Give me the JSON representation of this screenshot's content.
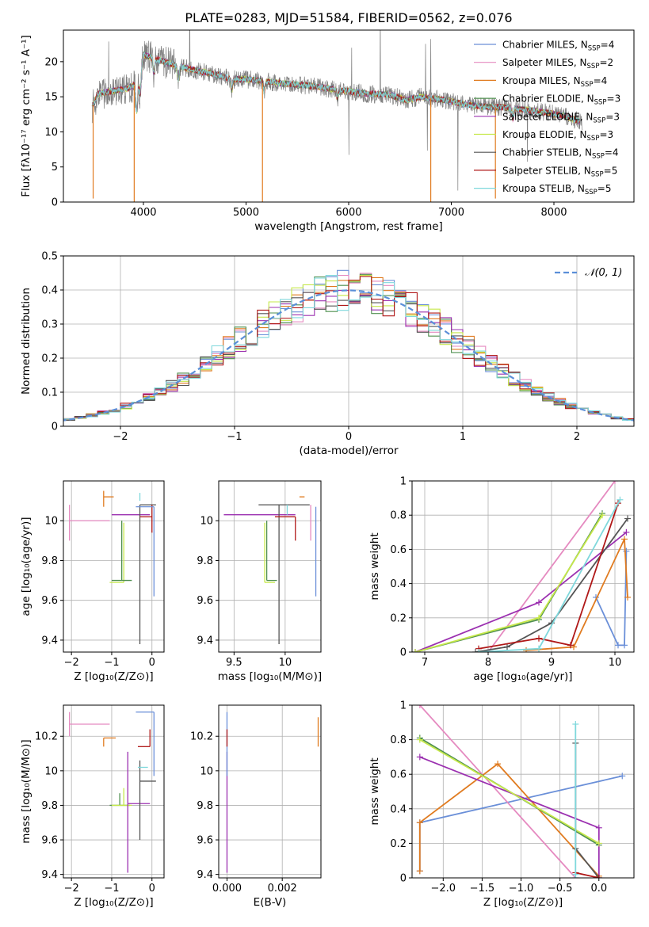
{
  "figure": {
    "title": "PLATE=0283, MJD=51584, FIBERID=0562, z=0.076"
  },
  "colors": {
    "chabrier_miles": "#6a8fd8",
    "salpeter_miles": "#e58ac0",
    "kroupa_miles": "#e07b20",
    "chabrier_elodie": "#4f8f4f",
    "salpeter_elodie": "#9b30b0",
    "kroupa_elodie": "#c6e84a",
    "chabrier_stelib": "#555555",
    "salpeter_stelib": "#b01818",
    "kroupa_stelib": "#7fd8dc",
    "normal_curve": "#5b8fd8",
    "grid": "#b0b0b0"
  },
  "chart_data": [
    {
      "id": "spectrum",
      "type": "line",
      "xlabel": "wavelength [Angstrom, rest frame]",
      "ylabel": "Flux [fλ10⁻¹⁷ erg cm⁻² s⁻¹ A⁻¹]",
      "xlim": [
        3220,
        8780
      ],
      "ylim": [
        0,
        24.5
      ],
      "xticks": [
        4000,
        5000,
        6000,
        7000,
        8000
      ],
      "yticks": [
        0,
        5,
        10,
        15,
        20
      ],
      "grid": false,
      "legend_position": "top-right",
      "data_anchors": {
        "x": [
          3500,
          3560,
          3700,
          3850,
          3950,
          4000,
          4100,
          4300,
          4500,
          4700,
          4860,
          5000,
          5200,
          5400,
          5600,
          5800,
          6000,
          6200,
          6400,
          6563,
          6700,
          6900,
          7100,
          7300,
          7500,
          7700,
          7900,
          8100,
          8250
        ],
        "y": [
          13.5,
          15.5,
          15.8,
          16.2,
          17.0,
          21.0,
          20.5,
          19.5,
          18.8,
          18.2,
          17.5,
          17.5,
          17.2,
          16.8,
          16.6,
          16.2,
          15.8,
          15.4,
          15.3,
          14.5,
          15.0,
          14.6,
          14.0,
          13.6,
          13.5,
          13.2,
          12.8,
          12.3,
          11.5
        ]
      },
      "series": [
        {
          "name": "Chabrier MILES, N_SSP=4",
          "legend_label": "Chabrier MILES, N",
          "legend_sub": "SSP",
          "legend_suffix": "=4",
          "color_key": "chabrier_miles"
        },
        {
          "name": "Salpeter MILES, N_SSP=2",
          "legend_label": "Salpeter MILES, N",
          "legend_sub": "SSP",
          "legend_suffix": "=2",
          "color_key": "salpeter_miles"
        },
        {
          "name": "Kroupa MILES, N_SSP=4",
          "legend_label": "Kroupa MILES, N",
          "legend_sub": "SSP",
          "legend_suffix": "=4",
          "color_key": "kroupa_miles"
        },
        {
          "name": "Chabrier ELODIE, N_SSP=3",
          "legend_label": "Chabrier ELODIE, N",
          "legend_sub": "SSP",
          "legend_suffix": "=3",
          "color_key": "chabrier_elodie"
        },
        {
          "name": "Salpeter ELODIE, N_SSP=3",
          "legend_label": "Salpeter ELODIE, N",
          "legend_sub": "SSP",
          "legend_suffix": "=3",
          "color_key": "salpeter_elodie"
        },
        {
          "name": "Kroupa ELODIE, N_SSP=3",
          "legend_label": "Kroupa ELODIE, N",
          "legend_sub": "SSP",
          "legend_suffix": "=3",
          "color_key": "kroupa_elodie"
        },
        {
          "name": "Chabrier STELIB, N_SSP=4",
          "legend_label": "Chabrier STELIB, N",
          "legend_sub": "SSP",
          "legend_suffix": "=4",
          "color_key": "chabrier_stelib"
        },
        {
          "name": "Salpeter STELIB, N_SSP=5",
          "legend_label": "Salpeter STELIB, N",
          "legend_sub": "SSP",
          "legend_suffix": "=5",
          "color_key": "salpeter_stelib"
        },
        {
          "name": "Kroupa STELIB, N_SSP=5",
          "legend_label": "Kroupa STELIB, N",
          "legend_sub": "SSP",
          "legend_suffix": "=5",
          "color_key": "kroupa_stelib"
        }
      ],
      "dips": [
        {
          "x": 3510,
          "y": 0.5,
          "color_key": "kroupa_miles"
        },
        {
          "x": 3910,
          "y": 0.0,
          "color_key": "kroupa_miles"
        },
        {
          "x": 5160,
          "y": 0.0,
          "color_key": "kroupa_miles"
        },
        {
          "x": 6800,
          "y": 0.0,
          "color_key": "kroupa_miles"
        },
        {
          "x": 7430,
          "y": 0.5,
          "color_key": "kroupa_miles"
        }
      ]
    },
    {
      "id": "residuals",
      "type": "step",
      "xlabel": "(data-model)/error",
      "ylabel": "Normed distribution",
      "xlim": [
        -2.5,
        2.5
      ],
      "ylim": [
        0,
        0.5
      ],
      "xticks": [
        -2,
        -1,
        0,
        1,
        2
      ],
      "yticks": [
        0.0,
        0.1,
        0.2,
        0.3,
        0.4,
        0.5
      ],
      "grid": true,
      "legend_position": "top-right",
      "legend": "𝒩(0, 1)",
      "bin_width": 0.1,
      "curve": {
        "name": "N(0,1)",
        "mu": 0,
        "sigma": 1
      }
    },
    {
      "id": "age_vs_z",
      "type": "errorbar",
      "xlabel": "Z [log₁₀(Z/Z⊙)]",
      "ylabel": "age  [log₁₀(age/yr)]",
      "xlim": [
        -2.2,
        0.3
      ],
      "ylim": [
        9.34,
        10.2
      ],
      "xticks": [
        -2,
        -1,
        0
      ],
      "yticks": [
        9.4,
        9.6,
        9.8,
        10.0
      ],
      "grid": true,
      "points": [
        {
          "color_key": "salpeter_miles",
          "x": -2.05,
          "y": 10.0,
          "x_err": [
            0.0,
            1.0
          ],
          "y_err": [
            0.1,
            0.08
          ]
        },
        {
          "color_key": "kroupa_miles",
          "x": -1.2,
          "y": 10.12,
          "x_err": [
            0.0,
            0.25
          ],
          "y_err": [
            0.05,
            0.03
          ]
        },
        {
          "color_key": "kroupa_elodie",
          "x": -0.7,
          "y": 9.69,
          "x_err": [
            0.35,
            0.0
          ],
          "y_err": [
            0.0,
            0.3
          ]
        },
        {
          "color_key": "chabrier_elodie",
          "x": -0.75,
          "y": 9.7,
          "x_err": [
            0.25,
            0.25
          ],
          "y_err": [
            0.0,
            0.3
          ]
        },
        {
          "color_key": "salpeter_elodie",
          "x": -0.6,
          "y": 10.03,
          "x_err": [
            0.4,
            0.55
          ],
          "y_err": [
            0.0,
            0.0
          ]
        },
        {
          "color_key": "kroupa_stelib",
          "x": -0.3,
          "y": 10.1,
          "x_err": [
            0.0,
            0.0
          ],
          "y_err": [
            0.0,
            0.04
          ]
        },
        {
          "color_key": "chabrier_stelib",
          "x": -0.3,
          "y": 10.08,
          "x_err": [
            0.0,
            0.4
          ],
          "y_err": [
            0.7,
            0.0
          ]
        },
        {
          "color_key": "salpeter_stelib",
          "x": 0.0,
          "y": 10.02,
          "x_err": [
            0.3,
            0.0
          ],
          "y_err": [
            0.08,
            0.06
          ]
        },
        {
          "color_key": "chabrier_miles",
          "x": 0.05,
          "y": 10.07,
          "x_err": [
            0.45,
            0.0
          ],
          "y_err": [
            0.45,
            0.0
          ]
        }
      ]
    },
    {
      "id": "age_vs_mass",
      "type": "errorbar",
      "xlabel": "mass [log₁₀(M/M⊙)]",
      "ylabel": "",
      "xlim": [
        9.35,
        10.35
      ],
      "ylim": [
        9.34,
        10.2
      ],
      "xticks": [
        9.5,
        10.0
      ],
      "yticks": [
        9.4,
        9.6,
        9.8,
        10.0
      ],
      "grid": true,
      "points": [
        {
          "color_key": "kroupa_elodie",
          "x": 9.8,
          "y": 9.69,
          "x_err": [
            0.0,
            0.1
          ],
          "y_err": [
            0.0,
            0.3
          ]
        },
        {
          "color_key": "chabrier_elodie",
          "x": 9.82,
          "y": 9.7,
          "x_err": [
            0.0,
            0.1
          ],
          "y_err": [
            0.0,
            0.3
          ]
        },
        {
          "color_key": "salpeter_elodie",
          "x": 9.8,
          "y": 10.03,
          "x_err": [
            0.4,
            0.3
          ],
          "y_err": [
            0.0,
            0.0
          ]
        },
        {
          "color_key": "chabrier_stelib",
          "x": 9.94,
          "y": 10.08,
          "x_err": [
            0.2,
            0.3
          ],
          "y_err": [
            0.7,
            0.0
          ]
        },
        {
          "color_key": "kroupa_stelib",
          "x": 10.02,
          "y": 10.08,
          "x_err": [
            0.0,
            0.0
          ],
          "y_err": [
            0.05,
            0.0
          ]
        },
        {
          "color_key": "salpeter_stelib",
          "x": 10.1,
          "y": 10.02,
          "x_err": [
            0.2,
            0.0
          ],
          "y_err": [
            0.12,
            0.0
          ]
        },
        {
          "color_key": "kroupa_miles",
          "x": 10.19,
          "y": 10.12,
          "x_err": [
            0.05,
            0.0
          ],
          "y_err": [
            0.0,
            0.0
          ]
        },
        {
          "color_key": "salpeter_miles",
          "x": 10.25,
          "y": 10.0,
          "x_err": [
            0.0,
            0.0
          ],
          "y_err": [
            0.1,
            0.08
          ]
        },
        {
          "color_key": "chabrier_miles",
          "x": 10.3,
          "y": 10.07,
          "x_err": [
            0.0,
            0.0
          ],
          "y_err": [
            0.45,
            0.0
          ]
        }
      ]
    },
    {
      "id": "weight_vs_age",
      "type": "line",
      "xlabel": "age  [log₁₀(age/yr)]",
      "ylabel": "mass weight",
      "xlim": [
        6.8,
        10.3
      ],
      "ylim": [
        0,
        1.0
      ],
      "xticks": [
        7,
        8,
        9,
        10
      ],
      "yticks": [
        0.0,
        0.2,
        0.4,
        0.6,
        0.8,
        1.0
      ],
      "grid": true,
      "series": [
        {
          "color_key": "chabrier_miles",
          "x": [
            9.7,
            10.05,
            10.15,
            10.18
          ],
          "y": [
            0.32,
            0.04,
            0.04,
            0.59
          ]
        },
        {
          "color_key": "salpeter_miles",
          "x": [
            8.0,
            10.0
          ],
          "y": [
            0.0,
            1.0
          ]
        },
        {
          "color_key": "kroupa_miles",
          "x": [
            8.6,
            9.35,
            10.15,
            10.2
          ],
          "y": [
            0.01,
            0.03,
            0.66,
            0.32
          ]
        },
        {
          "color_key": "chabrier_elodie",
          "x": [
            6.85,
            8.8,
            9.8
          ],
          "y": [
            0.0,
            0.19,
            0.81
          ]
        },
        {
          "color_key": "salpeter_elodie",
          "x": [
            6.85,
            8.8,
            10.18
          ],
          "y": [
            0.0,
            0.29,
            0.7
          ]
        },
        {
          "color_key": "kroupa_elodie",
          "x": [
            6.85,
            8.8,
            9.8
          ],
          "y": [
            0.0,
            0.2,
            0.8
          ]
        },
        {
          "color_key": "chabrier_stelib",
          "x": [
            7.8,
            8.3,
            9.0,
            10.2
          ],
          "y": [
            0.0,
            0.03,
            0.17,
            0.78
          ]
        },
        {
          "color_key": "salpeter_stelib",
          "x": [
            7.85,
            8.8,
            9.3,
            10.05
          ],
          "y": [
            0.02,
            0.08,
            0.04,
            0.87
          ]
        },
        {
          "color_key": "kroupa_stelib",
          "x": [
            7.85,
            8.8,
            10.08
          ],
          "y": [
            0.0,
            0.02,
            0.89
          ]
        }
      ]
    },
    {
      "id": "mass_vs_z",
      "type": "errorbar",
      "xlabel": "Z [log₁₀(Z/Z⊙)]",
      "ylabel": "mass [log₁₀(M/M⊙)]",
      "xlim": [
        -2.2,
        0.3
      ],
      "ylim": [
        9.38,
        10.38
      ],
      "xticks": [
        -2,
        -1,
        0
      ],
      "yticks": [
        9.4,
        9.6,
        9.8,
        10.0,
        10.2
      ],
      "grid": true,
      "points": [
        {
          "color_key": "salpeter_miles",
          "x": -2.05,
          "y": 10.27,
          "x_err": [
            0.0,
            1.0
          ],
          "y_err": [
            0.07,
            0.07
          ]
        },
        {
          "color_key": "kroupa_miles",
          "x": -1.2,
          "y": 10.19,
          "x_err": [
            0.0,
            0.3
          ],
          "y_err": [
            0.05,
            0.0
          ]
        },
        {
          "color_key": "chabrier_elodie",
          "x": -0.8,
          "y": 9.8,
          "x_err": [
            0.25,
            0.25
          ],
          "y_err": [
            0.0,
            0.07
          ]
        },
        {
          "color_key": "kroupa_elodie",
          "x": -0.7,
          "y": 9.8,
          "x_err": [
            0.3,
            0.2
          ],
          "y_err": [
            0.0,
            0.1
          ]
        },
        {
          "color_key": "salpeter_elodie",
          "x": -0.6,
          "y": 9.81,
          "x_err": [
            0.0,
            0.55
          ],
          "y_err": [
            0.4,
            0.3
          ]
        },
        {
          "color_key": "chabrier_stelib",
          "x": -0.3,
          "y": 9.94,
          "x_err": [
            0.0,
            0.4
          ],
          "y_err": [
            0.34,
            0.12
          ]
        },
        {
          "color_key": "salpeter_stelib",
          "x": -0.05,
          "y": 10.14,
          "x_err": [
            0.3,
            0.0
          ],
          "y_err": [
            0.0,
            0.1
          ]
        },
        {
          "color_key": "kroupa_stelib",
          "x": -0.1,
          "y": 10.02,
          "x_err": [
            0.25,
            0.0
          ],
          "y_err": [
            0.0,
            0.0
          ]
        },
        {
          "color_key": "chabrier_miles",
          "x": 0.05,
          "y": 10.34,
          "x_err": [
            0.45,
            0.0
          ],
          "y_err": [
            0.37,
            0.0
          ]
        }
      ]
    },
    {
      "id": "mass_vs_ebv",
      "type": "errorbar",
      "xlabel": "E(B-V)",
      "ylabel": "",
      "xlim": [
        -0.0003,
        0.0034
      ],
      "ylim": [
        9.38,
        10.38
      ],
      "xticks": [
        0.0,
        0.002
      ],
      "xtick_labels": [
        "0.000",
        "0.002"
      ],
      "yticks": [
        9.4,
        9.6,
        9.8,
        10.0,
        10.2
      ],
      "grid": true,
      "points": [
        {
          "color_key": "salpeter_elodie",
          "x": 0.0,
          "y": 9.81,
          "x_err": [
            0,
            0
          ],
          "y_err": [
            0.4,
            0.3
          ]
        },
        {
          "color_key": "chabrier_miles",
          "x": 0.0,
          "y": 10.34,
          "x_err": [
            0,
            0
          ],
          "y_err": [
            0.37,
            0.0
          ]
        },
        {
          "color_key": "salpeter_stelib",
          "x": 0.0,
          "y": 10.14,
          "x_err": [
            0,
            0
          ],
          "y_err": [
            0.0,
            0.1
          ]
        },
        {
          "color_key": "kroupa_stelib",
          "x": 0.0,
          "y": 10.02,
          "x_err": [
            0,
            0
          ],
          "y_err": [
            0.0,
            0.0
          ]
        },
        {
          "color_key": "kroupa_miles",
          "x": 0.0033,
          "y": 10.19,
          "x_err": [
            0,
            0
          ],
          "y_err": [
            0.05,
            0.12
          ]
        }
      ]
    },
    {
      "id": "weight_vs_z",
      "type": "line",
      "xlabel": "Z [log₁₀(Z/Z⊙)]",
      "ylabel": "mass weight",
      "xlim": [
        -2.4,
        0.45
      ],
      "ylim": [
        0,
        1.0
      ],
      "xticks": [
        -2.0,
        -1.5,
        -1.0,
        -0.5,
        0.0
      ],
      "xtick_labels": [
        "−2.0",
        "−1.5",
        "−1.0",
        "−0.5",
        "0.0"
      ],
      "yticks": [
        0.0,
        0.2,
        0.4,
        0.6,
        0.8,
        1.0
      ],
      "grid": true,
      "series": [
        {
          "color_key": "chabrier_miles",
          "x": [
            -2.3,
            -2.3,
            0.3
          ],
          "y": [
            0.04,
            0.32,
            0.59
          ]
        },
        {
          "color_key": "salpeter_miles",
          "x": [
            -2.3,
            -0.3
          ],
          "y": [
            1.0,
            0.0
          ]
        },
        {
          "color_key": "kroupa_miles",
          "x": [
            -2.3,
            -2.3,
            -1.3,
            0.0
          ],
          "y": [
            0.04,
            0.32,
            0.66,
            0.01
          ]
        },
        {
          "color_key": "chabrier_elodie",
          "x": [
            -2.3,
            0.0
          ],
          "y": [
            0.81,
            0.19
          ]
        },
        {
          "color_key": "salpeter_elodie",
          "x": [
            -2.3,
            0.0,
            0.0
          ],
          "y": [
            0.7,
            0.29,
            0.0
          ]
        },
        {
          "color_key": "kroupa_elodie",
          "x": [
            -2.3,
            0.0
          ],
          "y": [
            0.8,
            0.2
          ]
        },
        {
          "color_key": "chabrier_stelib",
          "x": [
            -0.3,
            -0.3,
            0.0
          ],
          "y": [
            0.78,
            0.17,
            0.0
          ]
        },
        {
          "color_key": "salpeter_stelib",
          "x": [
            -0.3,
            0.0
          ],
          "y": [
            0.03,
            0.0
          ]
        },
        {
          "color_key": "kroupa_stelib",
          "x": [
            -0.3,
            -0.3,
            -0.3
          ],
          "y": [
            0.89,
            0.02,
            0.0
          ]
        }
      ]
    }
  ]
}
